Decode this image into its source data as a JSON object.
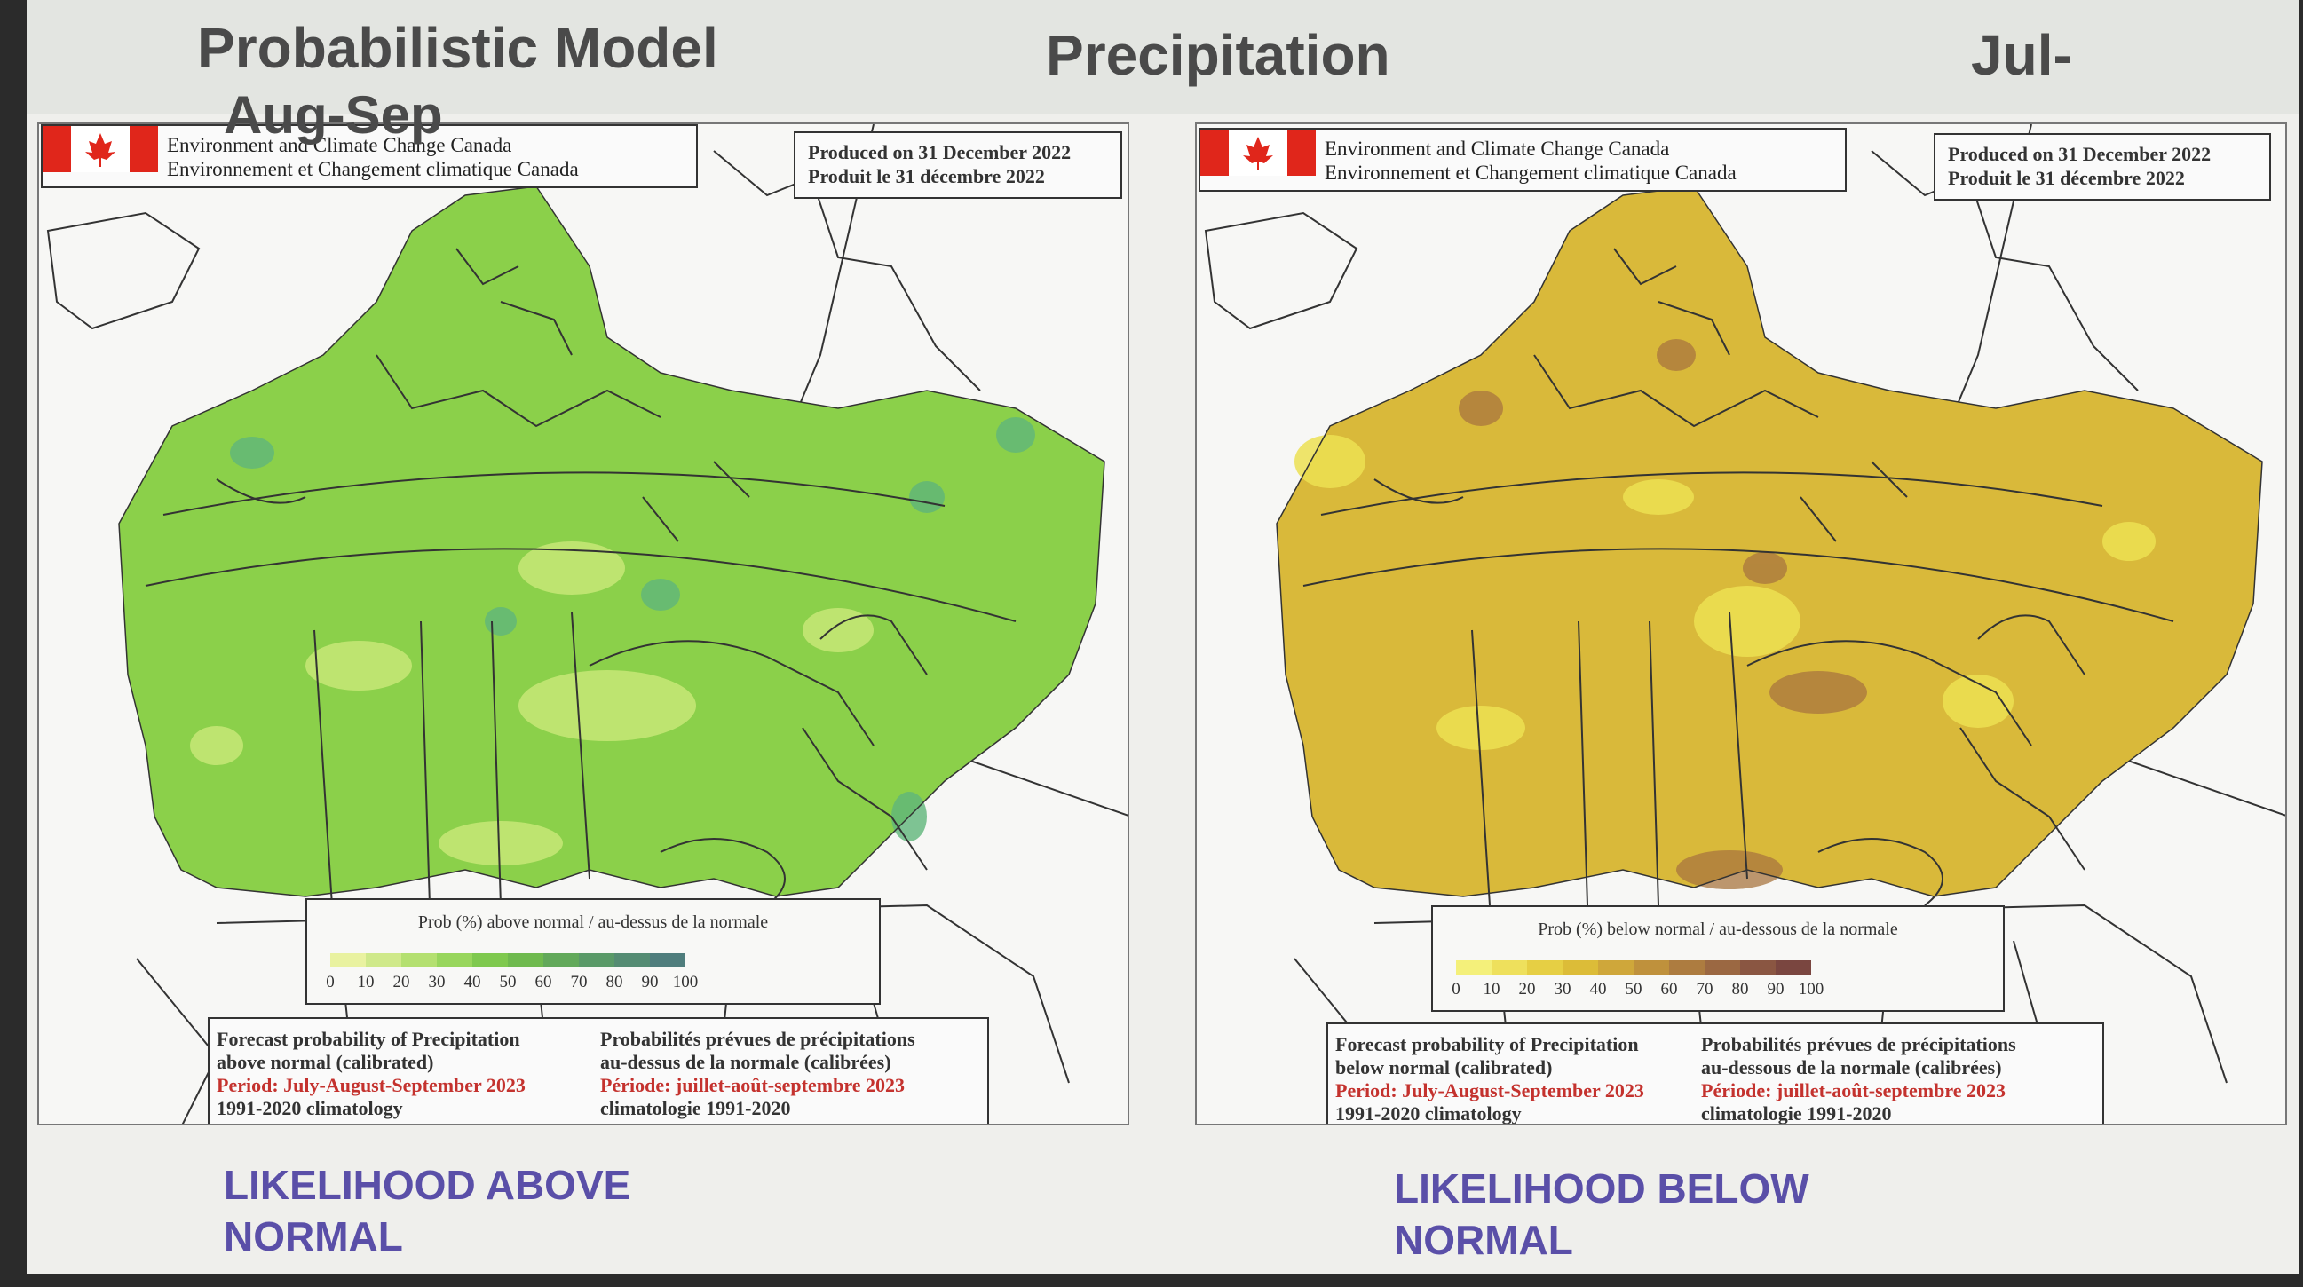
{
  "slide": {
    "title_left": "Probabilistic Model",
    "title_left_line2": "Aug-Sep",
    "title_center": "Precipitation",
    "title_right": "Jul-"
  },
  "agency": {
    "line_en": "Environment and Climate Change Canada",
    "line_fr": "Environnement et Changement climatique Canada",
    "produced_en": "Produced on 31 December 2022",
    "produced_fr": "Produit le 31 décembre 2022"
  },
  "maps": [
    {
      "legend_title": "Prob (%) above normal / au-dessus de la normale",
      "ticks": [
        "0",
        "10",
        "20",
        "30",
        "40",
        "50",
        "60",
        "70",
        "80",
        "90",
        "100"
      ],
      "colors": [
        "#e9f2a0",
        "#cfe98a",
        "#b4e070",
        "#98d65c",
        "#7fc94e",
        "#6fba4e",
        "#62a95a",
        "#5a9a68",
        "#558c73",
        "#4f7d7c"
      ],
      "map_fill": "#8bd04a",
      "forecast_en": [
        "Forecast probability of Precipitation",
        "above normal (calibrated)",
        "Period: July-August-September 2023",
        "1991-2020 climatology"
      ],
      "forecast_fr": [
        "Probabilités prévues de précipitations",
        "au-dessus de la normale (calibrées)",
        "Période: juillet-août-septembre 2023",
        "climatologie 1991-2020"
      ],
      "caption_line1": "LIKELIHOOD ABOVE",
      "caption_line2": "NORMAL"
    },
    {
      "legend_title": "Prob (%) below normal / au-dessous de la normale",
      "ticks": [
        "0",
        "10",
        "20",
        "30",
        "40",
        "50",
        "60",
        "70",
        "80",
        "90",
        "100"
      ],
      "colors": [
        "#f4f07a",
        "#eee05c",
        "#e6cf44",
        "#dcbc38",
        "#cfa73a",
        "#bf913c",
        "#ad7c40",
        "#9b6842",
        "#8a5642",
        "#7a4640"
      ],
      "map_fill": "#d9b93a",
      "forecast_en": [
        "Forecast probability of Precipitation",
        "below normal (calibrated)",
        "Period: July-August-September 2023",
        "1991-2020 climatology"
      ],
      "forecast_fr": [
        "Probabilités prévues de précipitations",
        "au-dessous de la normale (calibrées)",
        "Période: juillet-août-septembre 2023",
        "climatologie 1991-2020"
      ],
      "caption_line1": "LIKELIHOOD BELOW",
      "caption_line2": "NORMAL"
    }
  ]
}
